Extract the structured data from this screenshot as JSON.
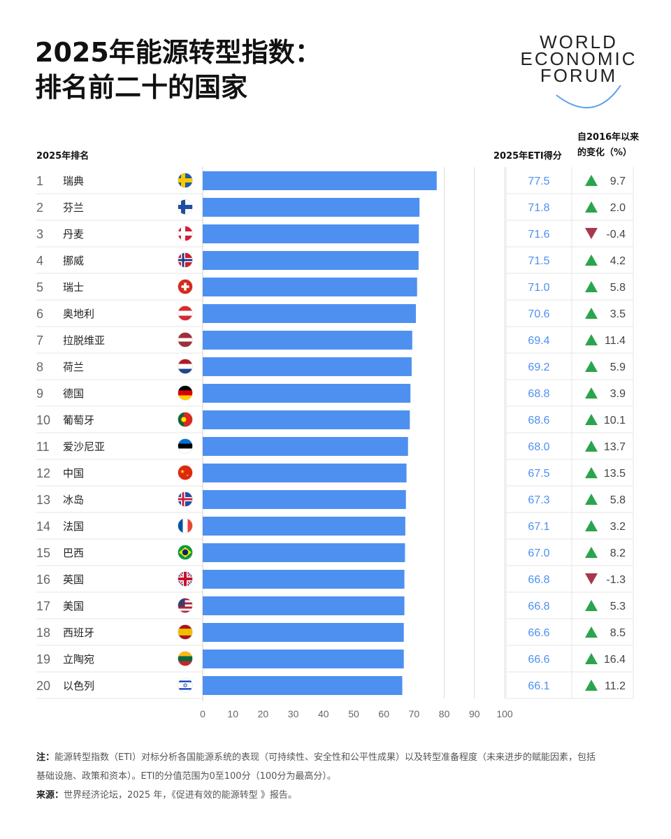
{
  "title_line1": "2025年能源转型指数：",
  "title_line2": "排名前二十的国家",
  "logo": [
    "WORLD",
    "ECONOMIC",
    "FORUM"
  ],
  "colors": {
    "bar": "#4d90f0",
    "score_text": "#4d90f0",
    "up": "#2ca44e",
    "down": "#a8384e"
  },
  "chart_data": {
    "type": "bar",
    "orientation": "horizontal",
    "rank_header": "2025年排名",
    "score_header": "2025年ETI得分",
    "change_header_line1": "自2016年以来",
    "change_header_line2": "的变化（%）",
    "xlim": [
      0,
      100
    ],
    "xticks": [
      "0",
      "10",
      "20",
      "30",
      "40",
      "50",
      "60",
      "70",
      "80",
      "90",
      "100"
    ],
    "grid": "vertical at 80, 90, 100",
    "rows": [
      {
        "rank": "1",
        "country": "瑞典",
        "flag": "sweden-flag-icon",
        "score": 77.5,
        "score_label": "77.5",
        "change": 9.7,
        "change_label": "9.7"
      },
      {
        "rank": "2",
        "country": "芬兰",
        "flag": "finland-flag-icon",
        "score": 71.8,
        "score_label": "71.8",
        "change": 2.0,
        "change_label": "2.0"
      },
      {
        "rank": "3",
        "country": "丹麦",
        "flag": "denmark-flag-icon",
        "score": 71.6,
        "score_label": "71.6",
        "change": -0.4,
        "change_label": "-0.4"
      },
      {
        "rank": "4",
        "country": "挪威",
        "flag": "norway-flag-icon",
        "score": 71.5,
        "score_label": "71.5",
        "change": 4.2,
        "change_label": "4.2"
      },
      {
        "rank": "5",
        "country": "瑞士",
        "flag": "switzerland-flag-icon",
        "score": 71.0,
        "score_label": "71.0",
        "change": 5.8,
        "change_label": "5.8"
      },
      {
        "rank": "6",
        "country": "奥地利",
        "flag": "austria-flag-icon",
        "score": 70.6,
        "score_label": "70.6",
        "change": 3.5,
        "change_label": "3.5"
      },
      {
        "rank": "7",
        "country": "拉脱维亚",
        "flag": "latvia-flag-icon",
        "score": 69.4,
        "score_label": "69.4",
        "change": 11.4,
        "change_label": "11.4"
      },
      {
        "rank": "8",
        "country": "荷兰",
        "flag": "netherlands-flag-icon",
        "score": 69.2,
        "score_label": "69.2",
        "change": 5.9,
        "change_label": "5.9"
      },
      {
        "rank": "9",
        "country": "德国",
        "flag": "germany-flag-icon",
        "score": 68.8,
        "score_label": "68.8",
        "change": 3.9,
        "change_label": "3.9"
      },
      {
        "rank": "10",
        "country": "葡萄牙",
        "flag": "portugal-flag-icon",
        "score": 68.6,
        "score_label": "68.6",
        "change": 10.1,
        "change_label": "10.1"
      },
      {
        "rank": "11",
        "country": "爱沙尼亚",
        "flag": "estonia-flag-icon",
        "score": 68.0,
        "score_label": "68.0",
        "change": 13.7,
        "change_label": "13.7"
      },
      {
        "rank": "12",
        "country": "中国",
        "flag": "china-flag-icon",
        "score": 67.5,
        "score_label": "67.5",
        "change": 13.5,
        "change_label": "13.5"
      },
      {
        "rank": "13",
        "country": "冰岛",
        "flag": "iceland-flag-icon",
        "score": 67.3,
        "score_label": "67.3",
        "change": 5.8,
        "change_label": "5.8"
      },
      {
        "rank": "14",
        "country": "法国",
        "flag": "france-flag-icon",
        "score": 67.1,
        "score_label": "67.1",
        "change": 3.2,
        "change_label": "3.2"
      },
      {
        "rank": "15",
        "country": "巴西",
        "flag": "brazil-flag-icon",
        "score": 67.0,
        "score_label": "67.0",
        "change": 8.2,
        "change_label": "8.2"
      },
      {
        "rank": "16",
        "country": "英国",
        "flag": "uk-flag-icon",
        "score": 66.8,
        "score_label": "66.8",
        "change": -1.3,
        "change_label": "-1.3"
      },
      {
        "rank": "17",
        "country": "美国",
        "flag": "usa-flag-icon",
        "score": 66.8,
        "score_label": "66.8",
        "change": 5.3,
        "change_label": "5.3"
      },
      {
        "rank": "18",
        "country": "西班牙",
        "flag": "spain-flag-icon",
        "score": 66.6,
        "score_label": "66.6",
        "change": 8.5,
        "change_label": "8.5"
      },
      {
        "rank": "19",
        "country": "立陶宛",
        "flag": "lithuania-flag-icon",
        "score": 66.6,
        "score_label": "66.6",
        "change": 16.4,
        "change_label": "16.4"
      },
      {
        "rank": "20",
        "country": "以色列",
        "flag": "israel-flag-icon",
        "score": 66.1,
        "score_label": "66.1",
        "change": 11.2,
        "change_label": "11.2"
      }
    ]
  },
  "notes": {
    "note_label": "注：",
    "note_text": "能源转型指数（ETI）对标分析各国能源系统的表现（可持续性、安全性和公平性成果）以及转型准备程度（未来进步的赋能因素，包括基础设施、政策和资本）。ETI的分值范围为0至100分（100分为最高分）。",
    "source_label": "来源：",
    "source_text": "世界经济论坛，2025 年，《促进有效的能源转型 》报告。"
  }
}
